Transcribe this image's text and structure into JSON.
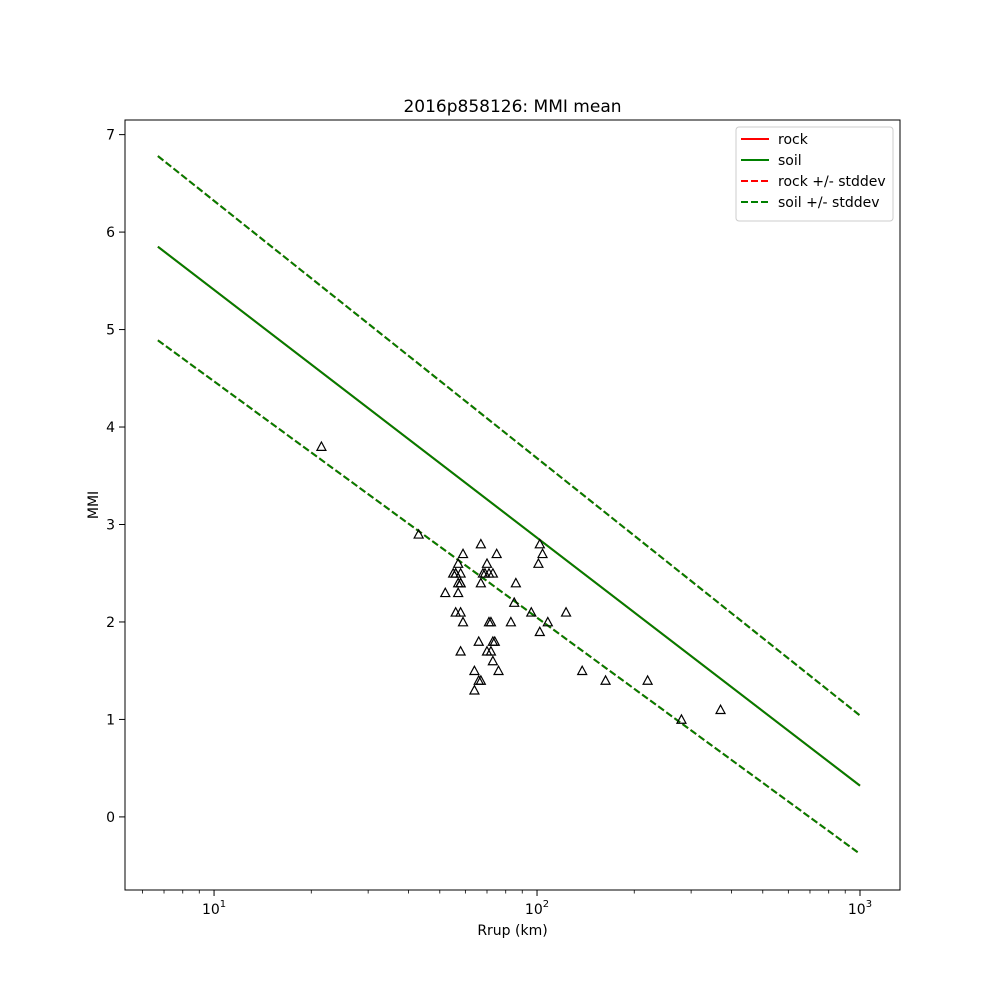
{
  "chart_data": {
    "type": "scatter",
    "title": "2016p858126: MMI mean",
    "xlabel": "Rrup (km)",
    "ylabel": "MMI",
    "xscale": "log",
    "xlim": [
      5.3,
      1330
    ],
    "ylim": [
      -0.75,
      7.15
    ],
    "x_ticks": [
      {
        "value": 10,
        "base": "10",
        "exp": "1"
      },
      {
        "value": 100,
        "base": "10",
        "exp": "2"
      },
      {
        "value": 1000,
        "base": "10",
        "exp": "3"
      }
    ],
    "y_ticks": [
      "0",
      "1",
      "2",
      "3",
      "4",
      "5",
      "6",
      "7"
    ],
    "grid": false,
    "legend_position": "top-right",
    "legend": [
      {
        "label": "rock",
        "color": "#ff0000",
        "style": "solid"
      },
      {
        "label": "soil",
        "color": "#008000",
        "style": "solid"
      },
      {
        "label": "rock +/- stddev",
        "color": "#ff0000",
        "style": "dashed"
      },
      {
        "label": "soil +/- stddev",
        "color": "#008000",
        "style": "dashed"
      }
    ],
    "lines": [
      {
        "name": "rock",
        "color": "#ff0000",
        "style": "solid",
        "x": [
          6.7,
          1000
        ],
        "y": [
          5.85,
          0.32
        ]
      },
      {
        "name": "soil",
        "color": "#008000",
        "style": "solid",
        "x": [
          6.7,
          1000
        ],
        "y": [
          5.85,
          0.32
        ]
      },
      {
        "name": "rock +/- stddev",
        "color": "#ff0000",
        "style": "dashed",
        "x": [
          6.7,
          1000
        ],
        "y": [
          6.78,
          1.04
        ]
      },
      {
        "name": "rock +/- stddev",
        "color": "#ff0000",
        "style": "dashed",
        "x": [
          6.7,
          1000
        ],
        "y": [
          4.89,
          -0.38
        ]
      },
      {
        "name": "soil +/- stddev",
        "color": "#008000",
        "style": "dashed",
        "x": [
          6.7,
          1000
        ],
        "y": [
          6.78,
          1.04
        ]
      },
      {
        "name": "soil +/- stddev",
        "color": "#008000",
        "style": "dashed",
        "x": [
          6.7,
          1000
        ],
        "y": [
          4.89,
          -0.38
        ]
      }
    ],
    "points": {
      "marker": "open-triangle",
      "color": "#000000",
      "x": [
        21.5,
        43,
        55,
        56,
        56,
        57,
        57,
        57,
        58,
        58,
        58,
        52,
        56,
        58,
        59,
        59,
        58,
        67,
        67,
        68,
        69,
        70,
        71,
        73,
        75,
        66,
        71,
        72,
        73,
        72,
        74,
        70,
        73,
        66,
        64,
        67,
        64,
        76,
        83,
        86,
        85,
        96,
        102,
        101,
        104,
        102,
        108,
        123,
        138,
        163,
        220,
        280,
        370
      ],
      "y": [
        3.8,
        2.9,
        2.5,
        2.5,
        2.1,
        2.6,
        2.4,
        2.3,
        2.4,
        2.5,
        2.1,
        2.3,
        2.5,
        2.4,
        2.7,
        2.0,
        1.7,
        2.8,
        2.4,
        2.5,
        2.5,
        2.6,
        2.5,
        2.5,
        2.7,
        1.8,
        2.0,
        2.0,
        1.8,
        1.7,
        1.8,
        1.7,
        1.6,
        1.4,
        1.5,
        1.4,
        1.3,
        1.5,
        2.0,
        2.4,
        2.2,
        2.1,
        2.8,
        2.6,
        2.7,
        1.9,
        2.0,
        2.1,
        1.5,
        1.4,
        1.4,
        1.0,
        1.1
      ]
    }
  }
}
